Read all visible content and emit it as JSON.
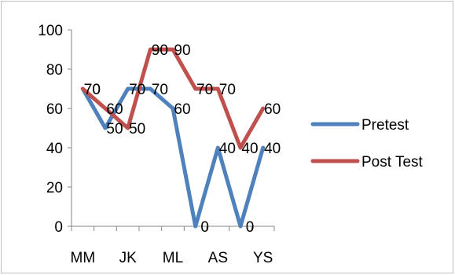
{
  "chart_data": {
    "type": "line",
    "title": "",
    "xlabel": "",
    "ylabel": "",
    "ylim": [
      0,
      100
    ],
    "yticks": [
      "0",
      "20",
      "40",
      "60",
      "80",
      "100"
    ],
    "x": [
      "MM",
      "",
      "JK",
      "",
      "ML",
      "",
      "AS",
      "",
      "YS"
    ],
    "x_tick_labels": [
      "MM",
      "JK",
      "ML",
      "AS",
      "YS"
    ],
    "grid": false,
    "legend_position": "right",
    "series": [
      {
        "name": "Pretest",
        "color": "#4f81bd",
        "values": [
          70,
          50,
          70,
          70,
          60,
          0,
          40,
          0,
          40
        ],
        "labels": [
          "70",
          "50",
          "70",
          "70",
          "60",
          "0",
          "40",
          "0",
          "40"
        ]
      },
      {
        "name": "Post Test",
        "color": "#c0504d",
        "values": [
          70,
          60,
          50,
          90,
          90,
          70,
          70,
          40,
          60
        ],
        "labels": [
          "70",
          "60",
          "50",
          "90",
          "90",
          "70",
          "70",
          "40",
          "60"
        ]
      }
    ]
  }
}
